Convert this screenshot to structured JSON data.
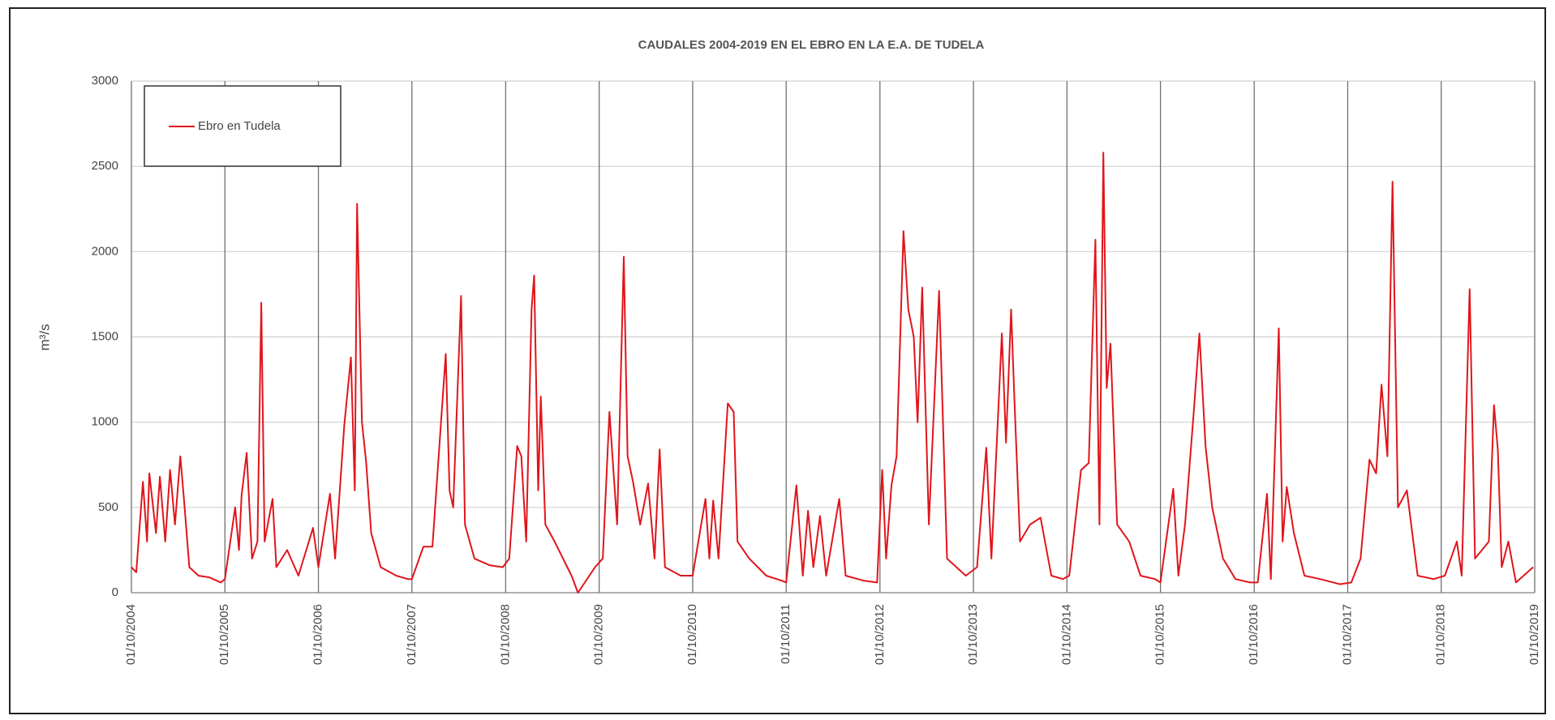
{
  "chart_data": {
    "type": "line",
    "title": "CAUDALES  2004-2019 EN EL EBRO EN LA E.A. DE TUDELA",
    "ylabel": "m³/s",
    "legend": "upper left",
    "grid": true,
    "xlim": [
      "2004-10-01",
      "2019-10-01"
    ],
    "xticks": [
      {
        "value": "2004-10-01",
        "label": "01/10/2004"
      },
      {
        "value": "2005-10-01",
        "label": "01/10/2005"
      },
      {
        "value": "2006-10-01",
        "label": "01/10/2006"
      },
      {
        "value": "2007-10-01",
        "label": "01/10/2007"
      },
      {
        "value": "2008-10-01",
        "label": "01/10/2008"
      },
      {
        "value": "2009-10-01",
        "label": "01/10/2009"
      },
      {
        "value": "2010-10-01",
        "label": "01/10/2010"
      },
      {
        "value": "2011-10-01",
        "label": "01/10/2011"
      },
      {
        "value": "2012-10-01",
        "label": "01/10/2012"
      },
      {
        "value": "2013-10-01",
        "label": "01/10/2013"
      },
      {
        "value": "2014-10-01",
        "label": "01/10/2014"
      },
      {
        "value": "2015-10-01",
        "label": "01/10/2015"
      },
      {
        "value": "2016-10-01",
        "label": "01/10/2016"
      },
      {
        "value": "2017-10-01",
        "label": "01/10/2017"
      },
      {
        "value": "2018-10-01",
        "label": "01/10/2018"
      },
      {
        "value": "2019-10-01",
        "label": "01/10/2019"
      }
    ],
    "ylim": [
      0,
      3000
    ],
    "yticks": [
      0,
      500,
      1000,
      1500,
      2000,
      2500,
      3000
    ],
    "x": [
      "2004-10-01",
      "2004-10-20",
      "2004-11-15",
      "2004-12-01",
      "2004-12-10",
      "2005-01-05",
      "2005-01-20",
      "2005-02-10",
      "2005-03-01",
      "2005-03-20",
      "2005-04-10",
      "2005-04-25",
      "2005-05-15",
      "2005-06-20",
      "2005-08-01",
      "2005-09-15",
      "2005-10-01",
      "2005-11-10",
      "2005-11-25",
      "2005-12-05",
      "2005-12-25",
      "2006-01-15",
      "2006-02-05",
      "2006-02-20",
      "2006-03-05",
      "2006-04-05",
      "2006-04-20",
      "2006-06-01",
      "2006-07-15",
      "2006-09-10",
      "2006-10-01",
      "2006-11-15",
      "2006-12-05",
      "2007-01-10",
      "2007-02-05",
      "2007-02-20",
      "2007-03-01",
      "2007-03-20",
      "2007-04-05",
      "2007-04-25",
      "2007-06-01",
      "2007-08-01",
      "2007-09-15",
      "2007-10-01",
      "2007-11-15",
      "2007-12-20",
      "2008-02-10",
      "2008-02-25",
      "2008-03-10",
      "2008-04-10",
      "2008-04-25",
      "2008-06-01",
      "2008-08-01",
      "2008-09-20",
      "2008-10-15",
      "2008-11-15",
      "2008-12-01",
      "2008-12-20",
      "2009-01-10",
      "2009-01-20",
      "2009-02-05",
      "2009-02-15",
      "2009-03-05",
      "2009-04-10",
      "2009-06-15",
      "2009-07-10",
      "2009-09-15",
      "2009-10-15",
      "2009-11-10",
      "2009-12-10",
      "2010-01-05",
      "2010-01-20",
      "2010-02-10",
      "2010-03-10",
      "2010-04-10",
      "2010-05-05",
      "2010-05-25",
      "2010-06-15",
      "2010-08-15",
      "2010-10-01",
      "2010-11-20",
      "2010-12-05",
      "2010-12-20",
      "2011-01-10",
      "2011-02-15",
      "2011-03-10",
      "2011-03-25",
      "2011-05-10",
      "2011-07-15",
      "2011-09-15",
      "2011-10-01",
      "2011-11-10",
      "2011-12-05",
      "2011-12-25",
      "2012-01-15",
      "2012-02-10",
      "2012-03-05",
      "2012-04-25",
      "2012-05-20",
      "2012-08-01",
      "2012-09-20",
      "2012-10-10",
      "2012-10-25",
      "2012-11-15",
      "2012-12-05",
      "2013-01-01",
      "2013-01-20",
      "2013-02-10",
      "2013-02-25",
      "2013-03-15",
      "2013-04-10",
      "2013-05-20",
      "2013-06-20",
      "2013-09-01",
      "2013-10-15",
      "2013-11-20",
      "2013-12-10",
      "2014-01-20",
      "2014-02-05",
      "2014-02-25",
      "2014-03-10",
      "2014-04-01",
      "2014-05-10",
      "2014-06-20",
      "2014-08-01",
      "2014-09-15",
      "2014-10-10",
      "2014-11-25",
      "2014-12-25",
      "2015-01-20",
      "2015-02-05",
      "2015-02-20",
      "2015-03-05",
      "2015-03-20",
      "2015-04-15",
      "2015-06-01",
      "2015-07-15",
      "2015-09-10",
      "2015-10-01",
      "2015-11-20",
      "2015-12-10",
      "2016-01-05",
      "2016-02-10",
      "2016-03-01",
      "2016-03-25",
      "2016-04-20",
      "2016-06-01",
      "2016-07-20",
      "2016-09-15",
      "2016-10-15",
      "2016-11-20",
      "2016-12-05",
      "2017-01-05",
      "2017-01-20",
      "2017-02-05",
      "2017-03-05",
      "2017-04-15",
      "2017-06-15",
      "2017-09-01",
      "2017-10-15",
      "2017-11-20",
      "2017-12-25",
      "2018-01-20",
      "2018-02-10",
      "2018-03-05",
      "2018-03-25",
      "2018-04-15",
      "2018-05-20",
      "2018-07-01",
      "2018-09-01",
      "2018-10-15",
      "2018-12-01",
      "2018-12-20",
      "2019-01-20",
      "2019-02-10",
      "2019-04-05",
      "2019-04-25",
      "2019-05-10",
      "2019-05-25",
      "2019-06-20",
      "2019-07-20",
      "2019-09-25"
    ],
    "series": [
      {
        "name": "Ebro en Tudela",
        "color": "#e0151b",
        "values": [
          150,
          120,
          650,
          300,
          700,
          350,
          680,
          300,
          720,
          400,
          800,
          530,
          150,
          100,
          90,
          60,
          80,
          500,
          250,
          570,
          820,
          200,
          300,
          1700,
          300,
          550,
          150,
          250,
          100,
          380,
          150,
          580,
          200,
          980,
          1380,
          600,
          2280,
          1000,
          770,
          350,
          150,
          100,
          80,
          80,
          270,
          270,
          1400,
          600,
          500,
          1740,
          400,
          200,
          160,
          150,
          200,
          860,
          800,
          300,
          1660,
          1860,
          600,
          1150,
          400,
          300,
          100,
          0,
          150,
          200,
          1060,
          400,
          1970,
          800,
          650,
          400,
          640,
          200,
          840,
          150,
          100,
          100,
          550,
          200,
          540,
          200,
          1110,
          1060,
          300,
          200,
          100,
          70,
          60,
          630,
          100,
          480,
          150,
          450,
          100,
          550,
          100,
          70,
          60,
          720,
          200,
          630,
          800,
          2120,
          1660,
          1500,
          1000,
          1790,
          400,
          1770,
          200,
          100,
          150,
          850,
          200,
          1520,
          880,
          1660,
          1130,
          300,
          400,
          440,
          100,
          80,
          100,
          720,
          760,
          2070,
          400,
          2580,
          1200,
          1460,
          400,
          300,
          100,
          80,
          60,
          610,
          100,
          400,
          1100,
          1520,
          860,
          500,
          200,
          80,
          60,
          60,
          580,
          80,
          1550,
          300,
          620,
          350,
          100,
          80,
          50,
          60,
          200,
          780,
          700,
          1220,
          800,
          2410,
          500,
          600,
          100,
          80,
          100,
          300,
          100,
          1780,
          200,
          300,
          1100,
          840,
          150,
          300,
          60,
          150
        ]
      }
    ]
  }
}
